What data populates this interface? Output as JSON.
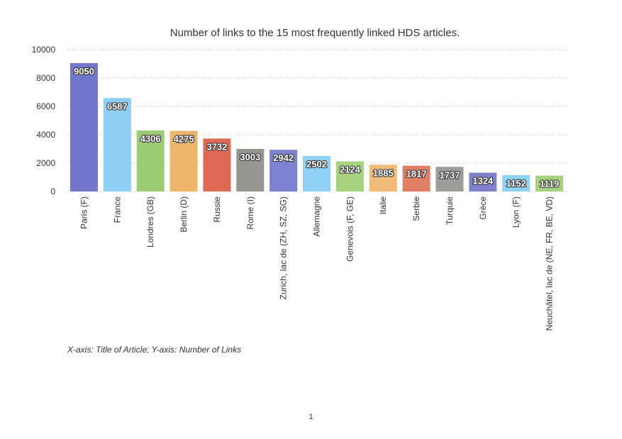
{
  "chart_data": {
    "type": "bar",
    "title": "Number of links to the 15 most frequently linked HDS articles.",
    "xlabel": "",
    "ylabel": "",
    "categories": [
      "Paris (F)",
      "France",
      "Londres (GB)",
      "Berlin (D)",
      "Russie",
      "Rome (I)",
      "Zurich, lac de (ZH, SZ, SG)",
      "Allemagne",
      "Genevois (F, GE)",
      "Italie",
      "Serbie",
      "Turquie",
      "Grèce",
      "Lyon (F)",
      "Neuchâtel, lac de (NE, FR, BE, VD)"
    ],
    "values": [
      9050,
      6587,
      4306,
      4275,
      3732,
      3003,
      2942,
      2502,
      2124,
      1885,
      1817,
      1737,
      1324,
      1152,
      1119
    ],
    "bar_colors": [
      "#7276cc",
      "#8fcef5",
      "#9ccb73",
      "#ecb56a",
      "#de6a55",
      "#969592",
      "#7c82cf",
      "#8ed1f7",
      "#a6d27f",
      "#f0bb77",
      "#e07e66",
      "#9e9c98",
      "#7f80cc",
      "#90d1f7",
      "#a7d17e"
    ],
    "ylim": [
      0,
      10000
    ],
    "yticks": [
      0,
      2000,
      4000,
      6000,
      8000,
      10000
    ],
    "grid": true,
    "legend": "none",
    "data_labels": true
  },
  "axis_note": "X-axis: Title of Article; Y-axis: Number of Links",
  "page_number": "1"
}
